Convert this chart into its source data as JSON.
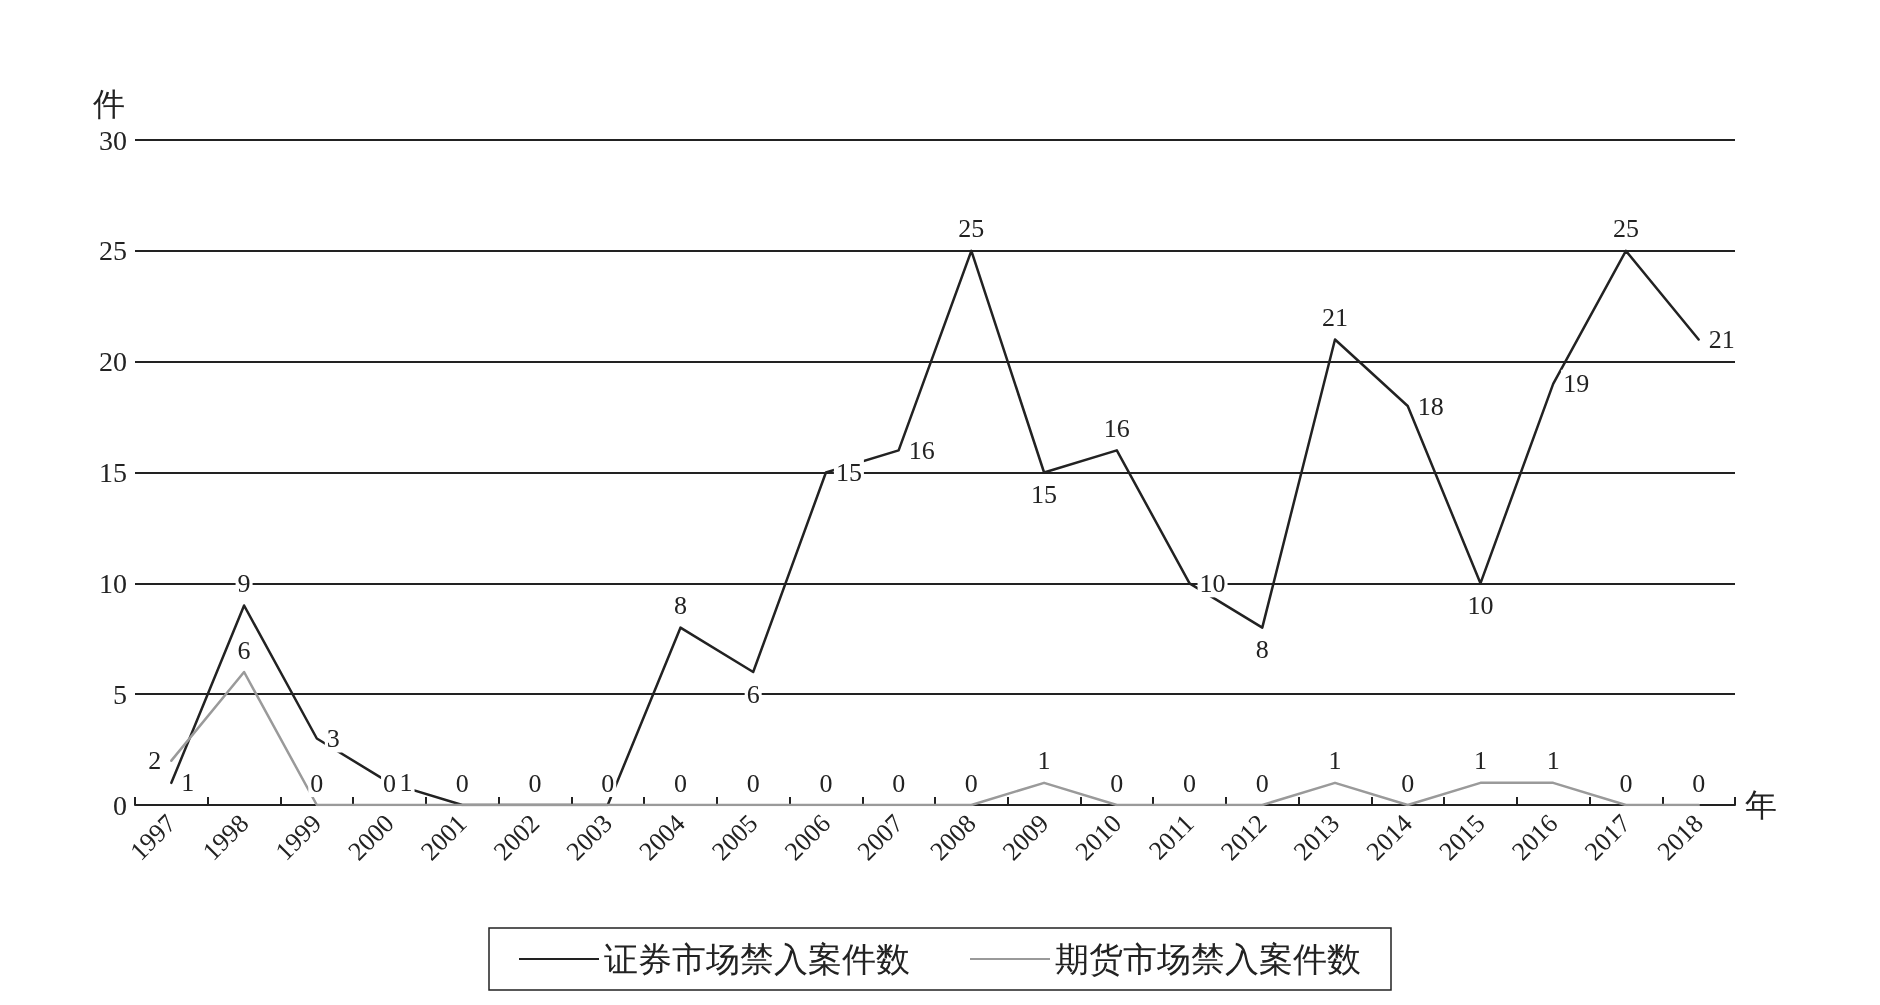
{
  "chart_data": {
    "type": "line",
    "xlabel": "年",
    "ylabel": "件",
    "categories": [
      "1997",
      "1998",
      "1999",
      "2000",
      "2001",
      "2002",
      "2003",
      "2004",
      "2005",
      "2006",
      "2007",
      "2008",
      "2009",
      "2010",
      "2011",
      "2012",
      "2013",
      "2014",
      "2015",
      "2016",
      "2017",
      "2018"
    ],
    "series": [
      {
        "name": "证券市场禁入案件数",
        "color": "#222222",
        "values": [
          1,
          9,
          3,
          1,
          0,
          0,
          0,
          8,
          6,
          15,
          16,
          25,
          15,
          16,
          10,
          8,
          21,
          18,
          10,
          19,
          25,
          21
        ],
        "value_labels": [
          "1",
          "9",
          "3",
          "1",
          null,
          null,
          null,
          "8",
          "6",
          "15",
          "16",
          "25",
          "15",
          "16",
          "10",
          "8",
          "21",
          "18",
          "10",
          "19",
          "25",
          "21"
        ]
      },
      {
        "name": "期货市场禁入案件数",
        "color": "#9a9a9a",
        "values": [
          2,
          6,
          0,
          0,
          0,
          0,
          0,
          0,
          0,
          0,
          0,
          0,
          1,
          0,
          0,
          0,
          1,
          0,
          1,
          1,
          0,
          0
        ],
        "value_labels": [
          "2",
          "6",
          "0",
          "0",
          "0",
          "0",
          "0",
          "0",
          "0",
          "0",
          "0",
          "0",
          "1",
          "0",
          "0",
          "0",
          "1",
          "0",
          "1",
          "1",
          "0",
          "0"
        ]
      }
    ],
    "ylim": [
      0,
      30
    ],
    "yticks": [
      0,
      5,
      10,
      15,
      20,
      25,
      30
    ],
    "grid": "y",
    "legend": "bottom",
    "marker": "none",
    "line_style": "solid"
  }
}
